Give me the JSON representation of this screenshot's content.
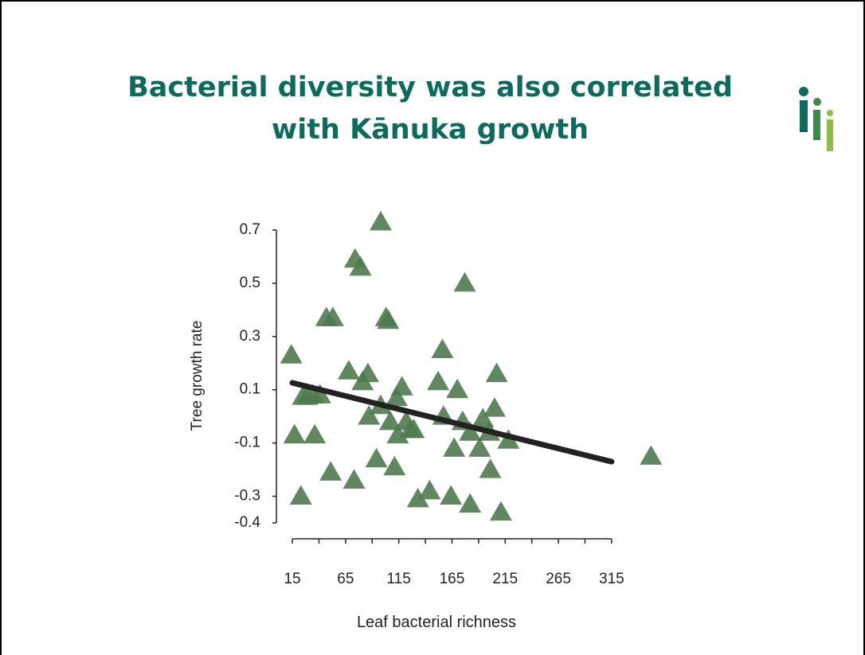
{
  "chart_data": {
    "type": "scatter",
    "title": [
      "Bacterial diversity was also correlated",
      "with Kānuka growth"
    ],
    "x_label": "Leaf bacterial richness",
    "y_label": "Tree growth rate",
    "color": "#4f7a4f",
    "x": [
      14,
      17,
      25,
      29,
      34,
      41,
      36,
      23,
      47,
      53,
      51,
      73,
      68,
      74,
      79,
      81,
      86,
      87,
      98,
      94,
      98,
      103,
      105,
      111,
      107,
      114,
      118,
      122,
      126,
      129,
      113,
      133,
      144,
      156,
      152,
      157,
      164,
      170,
      167,
      177,
      175,
      182,
      182,
      191,
      194,
      200,
      205,
      207,
      201,
      211,
      218,
      352
    ],
    "values": [
      0.23,
      -0.07,
      0.075,
      0.075,
      0.08,
      0.08,
      -0.07,
      -0.3,
      0.37,
      0.37,
      -0.21,
      -0.24,
      0.17,
      0.59,
      0.56,
      0.13,
      0.16,
      0.0,
      0.73,
      -0.16,
      0.04,
      0.37,
      0.36,
      -0.19,
      -0.02,
      -0.07,
      0.11,
      -0.02,
      -0.05,
      -0.05,
      0.07,
      -0.31,
      -0.28,
      0.25,
      0.13,
      0.0,
      -0.3,
      0.1,
      -0.12,
      0.5,
      -0.02,
      -0.33,
      -0.06,
      -0.12,
      -0.01,
      -0.06,
      0.03,
      0.16,
      -0.2,
      -0.36,
      -0.09,
      -0.15
    ],
    "fit": {
      "x": [
        15,
        315
      ],
      "values": [
        0.126,
        -0.17
      ],
      "color": "#222222"
    },
    "xlim": [
      0,
      360
    ],
    "ylim": [
      -0.4,
      0.7
    ],
    "xticks": [
      15,
      65,
      115,
      165,
      215,
      265,
      315
    ],
    "xminorticks": [
      40,
      90,
      140,
      190,
      240,
      290
    ],
    "yticks": [
      0.7,
      0.5,
      0.3,
      0.1,
      -0.1,
      -0.3,
      -0.4
    ]
  }
}
